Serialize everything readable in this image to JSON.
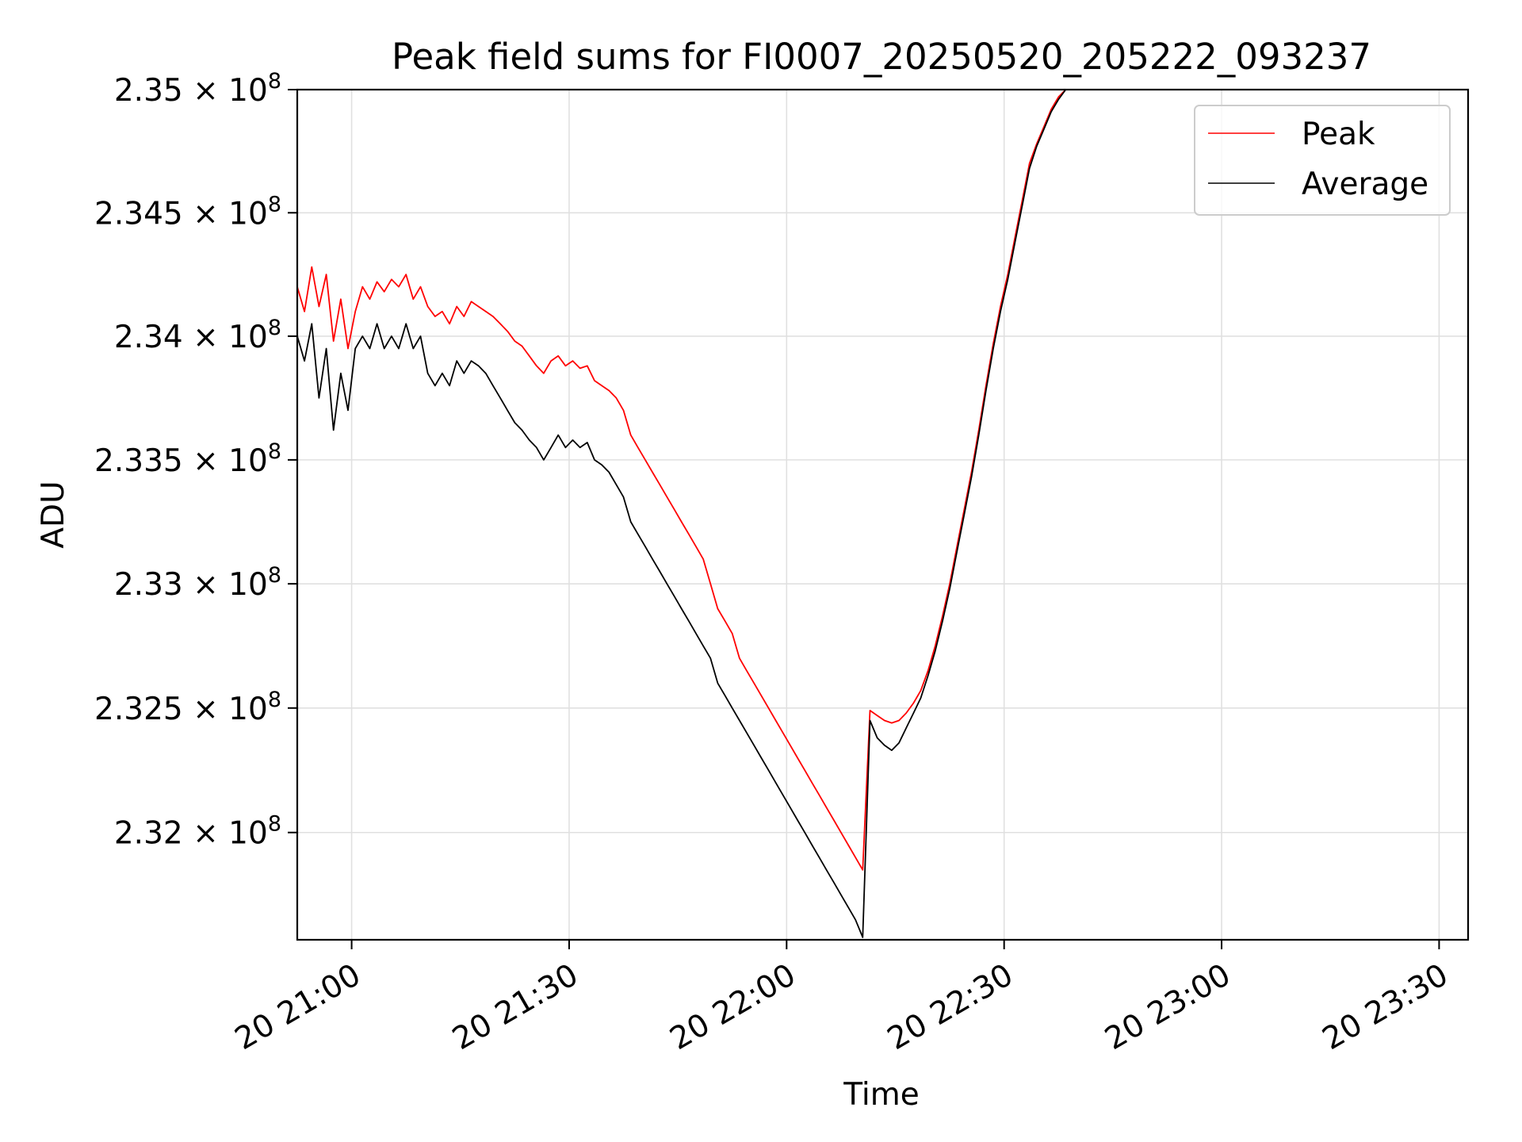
{
  "chart_data": {
    "type": "line",
    "title": "Peak field sums for FI0007_20250520_205222_093237",
    "xlabel": "Time",
    "ylabel": "ADU",
    "x_axis": {
      "kind": "time",
      "range": [
        "2025-05-20T20:52:30",
        "2025-05-20T23:34:00"
      ],
      "ticks": [
        {
          "value": "2025-05-20T21:00:00",
          "label": "20 21:00"
        },
        {
          "value": "2025-05-20T21:30:00",
          "label": "20 21:30"
        },
        {
          "value": "2025-05-20T22:00:00",
          "label": "20 22:00"
        },
        {
          "value": "2025-05-20T22:30:00",
          "label": "20 22:30"
        },
        {
          "value": "2025-05-20T23:00:00",
          "label": "20 23:00"
        },
        {
          "value": "2025-05-20T23:30:00",
          "label": "20 23:30"
        }
      ]
    },
    "y_axis": {
      "scale": "log",
      "range": [
        231570000,
        235000000
      ],
      "ticks": [
        {
          "value": 232000000,
          "mantissa": "2.32",
          "exp": "8"
        },
        {
          "value": 232500000,
          "mantissa": "2.325",
          "exp": "8"
        },
        {
          "value": 233000000,
          "mantissa": "2.33",
          "exp": "8"
        },
        {
          "value": 233500000,
          "mantissa": "2.335",
          "exp": "8"
        },
        {
          "value": 234000000,
          "mantissa": "2.34",
          "exp": "8"
        },
        {
          "value": 234500000,
          "mantissa": "2.345",
          "exp": "8"
        },
        {
          "value": 235000000,
          "mantissa": "2.35",
          "exp": "8"
        }
      ]
    },
    "grid": true,
    "legend": {
      "position": "top-right",
      "entries": [
        "Peak",
        "Average"
      ]
    },
    "series": [
      {
        "name": "Peak",
        "color": "#ff0000",
        "points": [
          [
            "2025-05-20T20:52:30",
            234200000
          ],
          [
            "2025-05-20T20:53:30",
            234100000
          ],
          [
            "2025-05-20T20:54:30",
            234280000
          ],
          [
            "2025-05-20T20:55:30",
            234120000
          ],
          [
            "2025-05-20T20:56:30",
            234250000
          ],
          [
            "2025-05-20T20:57:30",
            233980000
          ],
          [
            "2025-05-20T20:58:30",
            234150000
          ],
          [
            "2025-05-20T20:59:30",
            233950000
          ],
          [
            "2025-05-20T21:00:30",
            234100000
          ],
          [
            "2025-05-20T21:01:30",
            234200000
          ],
          [
            "2025-05-20T21:02:30",
            234150000
          ],
          [
            "2025-05-20T21:03:30",
            234220000
          ],
          [
            "2025-05-20T21:04:30",
            234180000
          ],
          [
            "2025-05-20T21:05:30",
            234230000
          ],
          [
            "2025-05-20T21:06:30",
            234200000
          ],
          [
            "2025-05-20T21:07:30",
            234250000
          ],
          [
            "2025-05-20T21:08:30",
            234150000
          ],
          [
            "2025-05-20T21:09:30",
            234200000
          ],
          [
            "2025-05-20T21:10:30",
            234120000
          ],
          [
            "2025-05-20T21:11:30",
            234080000
          ],
          [
            "2025-05-20T21:12:30",
            234100000
          ],
          [
            "2025-05-20T21:13:30",
            234050000
          ],
          [
            "2025-05-20T21:14:30",
            234120000
          ],
          [
            "2025-05-20T21:15:30",
            234080000
          ],
          [
            "2025-05-20T21:16:30",
            234140000
          ],
          [
            "2025-05-20T21:17:30",
            234120000
          ],
          [
            "2025-05-20T21:18:30",
            234100000
          ],
          [
            "2025-05-20T21:19:30",
            234080000
          ],
          [
            "2025-05-20T21:20:30",
            234050000
          ],
          [
            "2025-05-20T21:21:30",
            234020000
          ],
          [
            "2025-05-20T21:22:30",
            233980000
          ],
          [
            "2025-05-20T21:23:30",
            233960000
          ],
          [
            "2025-05-20T21:24:30",
            233920000
          ],
          [
            "2025-05-20T21:25:30",
            233880000
          ],
          [
            "2025-05-20T21:26:30",
            233850000
          ],
          [
            "2025-05-20T21:27:30",
            233900000
          ],
          [
            "2025-05-20T21:28:30",
            233920000
          ],
          [
            "2025-05-20T21:29:30",
            233880000
          ],
          [
            "2025-05-20T21:30:30",
            233900000
          ],
          [
            "2025-05-20T21:31:30",
            233870000
          ],
          [
            "2025-05-20T21:32:30",
            233880000
          ],
          [
            "2025-05-20T21:33:30",
            233820000
          ],
          [
            "2025-05-20T21:34:30",
            233800000
          ],
          [
            "2025-05-20T21:35:30",
            233780000
          ],
          [
            "2025-05-20T21:36:30",
            233750000
          ],
          [
            "2025-05-20T21:37:30",
            233700000
          ],
          [
            "2025-05-20T21:38:30",
            233600000
          ],
          [
            "2025-05-20T21:39:30",
            233550000
          ],
          [
            "2025-05-20T21:40:30",
            233500000
          ],
          [
            "2025-05-20T21:41:30",
            233450000
          ],
          [
            "2025-05-20T21:42:30",
            233400000
          ],
          [
            "2025-05-20T21:43:30",
            233350000
          ],
          [
            "2025-05-20T21:44:30",
            233300000
          ],
          [
            "2025-05-20T21:45:30",
            233250000
          ],
          [
            "2025-05-20T21:46:30",
            233200000
          ],
          [
            "2025-05-20T21:47:30",
            233150000
          ],
          [
            "2025-05-20T21:48:30",
            233100000
          ],
          [
            "2025-05-20T21:49:30",
            233000000
          ],
          [
            "2025-05-20T21:50:30",
            232900000
          ],
          [
            "2025-05-20T21:51:30",
            232850000
          ],
          [
            "2025-05-20T21:52:30",
            232800000
          ],
          [
            "2025-05-20T21:53:30",
            232700000
          ],
          [
            "2025-05-20T21:54:30",
            232650000
          ],
          [
            "2025-05-20T21:55:30",
            232600000
          ],
          [
            "2025-05-20T21:56:30",
            232550000
          ],
          [
            "2025-05-20T21:57:30",
            232500000
          ],
          [
            "2025-05-20T21:58:30",
            232450000
          ],
          [
            "2025-05-20T21:59:30",
            232400000
          ],
          [
            "2025-05-20T22:00:30",
            232350000
          ],
          [
            "2025-05-20T22:01:30",
            232300000
          ],
          [
            "2025-05-20T22:02:30",
            232250000
          ],
          [
            "2025-05-20T22:03:30",
            232200000
          ],
          [
            "2025-05-20T22:04:30",
            232150000
          ],
          [
            "2025-05-20T22:05:30",
            232100000
          ],
          [
            "2025-05-20T22:06:30",
            232050000
          ],
          [
            "2025-05-20T22:07:30",
            232000000
          ],
          [
            "2025-05-20T22:08:30",
            231950000
          ],
          [
            "2025-05-20T22:09:30",
            231900000
          ],
          [
            "2025-05-20T22:10:30",
            231850000
          ],
          [
            "2025-05-20T22:11:30",
            232490000
          ],
          [
            "2025-05-20T22:12:30",
            232470000
          ],
          [
            "2025-05-20T22:13:30",
            232450000
          ],
          [
            "2025-05-20T22:14:30",
            232440000
          ],
          [
            "2025-05-20T22:15:30",
            232450000
          ],
          [
            "2025-05-20T22:16:30",
            232480000
          ],
          [
            "2025-05-20T22:17:30",
            232520000
          ],
          [
            "2025-05-20T22:18:30",
            232570000
          ],
          [
            "2025-05-20T22:19:30",
            232650000
          ],
          [
            "2025-05-20T22:20:30",
            232750000
          ],
          [
            "2025-05-20T22:21:30",
            232870000
          ],
          [
            "2025-05-20T22:22:30",
            233000000
          ],
          [
            "2025-05-20T22:23:30",
            233150000
          ],
          [
            "2025-05-20T22:24:30",
            233300000
          ],
          [
            "2025-05-20T22:25:30",
            233450000
          ],
          [
            "2025-05-20T22:26:30",
            233620000
          ],
          [
            "2025-05-20T22:27:30",
            233800000
          ],
          [
            "2025-05-20T22:28:30",
            233970000
          ],
          [
            "2025-05-20T22:29:30",
            234120000
          ],
          [
            "2025-05-20T22:30:30",
            234250000
          ],
          [
            "2025-05-20T22:31:30",
            234400000
          ],
          [
            "2025-05-20T22:32:30",
            234550000
          ],
          [
            "2025-05-20T22:33:30",
            234700000
          ],
          [
            "2025-05-20T22:34:30",
            234780000
          ],
          [
            "2025-05-20T22:35:30",
            234850000
          ],
          [
            "2025-05-20T22:36:30",
            234920000
          ],
          [
            "2025-05-20T22:37:30",
            234970000
          ],
          [
            "2025-05-20T22:38:30",
            235000000
          ]
        ]
      },
      {
        "name": "Average",
        "color": "#000000",
        "points": [
          [
            "2025-05-20T20:52:30",
            234000000
          ],
          [
            "2025-05-20T20:53:30",
            233900000
          ],
          [
            "2025-05-20T20:54:30",
            234050000
          ],
          [
            "2025-05-20T20:55:30",
            233750000
          ],
          [
            "2025-05-20T20:56:30",
            233950000
          ],
          [
            "2025-05-20T20:57:30",
            233620000
          ],
          [
            "2025-05-20T20:58:30",
            233850000
          ],
          [
            "2025-05-20T20:59:30",
            233700000
          ],
          [
            "2025-05-20T21:00:30",
            233950000
          ],
          [
            "2025-05-20T21:01:30",
            234000000
          ],
          [
            "2025-05-20T21:02:30",
            233950000
          ],
          [
            "2025-05-20T21:03:30",
            234050000
          ],
          [
            "2025-05-20T21:04:30",
            233950000
          ],
          [
            "2025-05-20T21:05:30",
            234000000
          ],
          [
            "2025-05-20T21:06:30",
            233950000
          ],
          [
            "2025-05-20T21:07:30",
            234050000
          ],
          [
            "2025-05-20T21:08:30",
            233950000
          ],
          [
            "2025-05-20T21:09:30",
            234000000
          ],
          [
            "2025-05-20T21:10:30",
            233850000
          ],
          [
            "2025-05-20T21:11:30",
            233800000
          ],
          [
            "2025-05-20T21:12:30",
            233850000
          ],
          [
            "2025-05-20T21:13:30",
            233800000
          ],
          [
            "2025-05-20T21:14:30",
            233900000
          ],
          [
            "2025-05-20T21:15:30",
            233850000
          ],
          [
            "2025-05-20T21:16:30",
            233900000
          ],
          [
            "2025-05-20T21:17:30",
            233880000
          ],
          [
            "2025-05-20T21:18:30",
            233850000
          ],
          [
            "2025-05-20T21:19:30",
            233800000
          ],
          [
            "2025-05-20T21:20:30",
            233750000
          ],
          [
            "2025-05-20T21:21:30",
            233700000
          ],
          [
            "2025-05-20T21:22:30",
            233650000
          ],
          [
            "2025-05-20T21:23:30",
            233620000
          ],
          [
            "2025-05-20T21:24:30",
            233580000
          ],
          [
            "2025-05-20T21:25:30",
            233550000
          ],
          [
            "2025-05-20T21:26:30",
            233500000
          ],
          [
            "2025-05-20T21:27:30",
            233550000
          ],
          [
            "2025-05-20T21:28:30",
            233600000
          ],
          [
            "2025-05-20T21:29:30",
            233550000
          ],
          [
            "2025-05-20T21:30:30",
            233580000
          ],
          [
            "2025-05-20T21:31:30",
            233550000
          ],
          [
            "2025-05-20T21:32:30",
            233570000
          ],
          [
            "2025-05-20T21:33:30",
            233500000
          ],
          [
            "2025-05-20T21:34:30",
            233480000
          ],
          [
            "2025-05-20T21:35:30",
            233450000
          ],
          [
            "2025-05-20T21:36:30",
            233400000
          ],
          [
            "2025-05-20T21:37:30",
            233350000
          ],
          [
            "2025-05-20T21:38:30",
            233250000
          ],
          [
            "2025-05-20T21:39:30",
            233200000
          ],
          [
            "2025-05-20T21:40:30",
            233150000
          ],
          [
            "2025-05-20T21:41:30",
            233100000
          ],
          [
            "2025-05-20T21:42:30",
            233050000
          ],
          [
            "2025-05-20T21:43:30",
            233000000
          ],
          [
            "2025-05-20T21:44:30",
            232950000
          ],
          [
            "2025-05-20T21:45:30",
            232900000
          ],
          [
            "2025-05-20T21:46:30",
            232850000
          ],
          [
            "2025-05-20T21:47:30",
            232800000
          ],
          [
            "2025-05-20T21:48:30",
            232750000
          ],
          [
            "2025-05-20T21:49:30",
            232700000
          ],
          [
            "2025-05-20T21:50:30",
            232600000
          ],
          [
            "2025-05-20T21:51:30",
            232550000
          ],
          [
            "2025-05-20T21:52:30",
            232500000
          ],
          [
            "2025-05-20T21:53:30",
            232450000
          ],
          [
            "2025-05-20T21:54:30",
            232400000
          ],
          [
            "2025-05-20T21:55:30",
            232350000
          ],
          [
            "2025-05-20T21:56:30",
            232300000
          ],
          [
            "2025-05-20T21:57:30",
            232250000
          ],
          [
            "2025-05-20T21:58:30",
            232200000
          ],
          [
            "2025-05-20T21:59:30",
            232150000
          ],
          [
            "2025-05-20T22:00:30",
            232100000
          ],
          [
            "2025-05-20T22:01:30",
            232050000
          ],
          [
            "2025-05-20T22:02:30",
            232000000
          ],
          [
            "2025-05-20T22:03:30",
            231950000
          ],
          [
            "2025-05-20T22:04:30",
            231900000
          ],
          [
            "2025-05-20T22:05:30",
            231850000
          ],
          [
            "2025-05-20T22:06:30",
            231800000
          ],
          [
            "2025-05-20T22:07:30",
            231750000
          ],
          [
            "2025-05-20T22:08:30",
            231700000
          ],
          [
            "2025-05-20T22:09:30",
            231650000
          ],
          [
            "2025-05-20T22:10:30",
            231580000
          ],
          [
            "2025-05-20T22:11:30",
            232450000
          ],
          [
            "2025-05-20T22:12:30",
            232380000
          ],
          [
            "2025-05-20T22:13:30",
            232350000
          ],
          [
            "2025-05-20T22:14:30",
            232330000
          ],
          [
            "2025-05-20T22:15:30",
            232360000
          ],
          [
            "2025-05-20T22:16:30",
            232420000
          ],
          [
            "2025-05-20T22:17:30",
            232480000
          ],
          [
            "2025-05-20T22:18:30",
            232540000
          ],
          [
            "2025-05-20T22:19:30",
            232630000
          ],
          [
            "2025-05-20T22:20:30",
            232730000
          ],
          [
            "2025-05-20T22:21:30",
            232850000
          ],
          [
            "2025-05-20T22:22:30",
            232980000
          ],
          [
            "2025-05-20T22:23:30",
            233130000
          ],
          [
            "2025-05-20T22:24:30",
            233280000
          ],
          [
            "2025-05-20T22:25:30",
            233430000
          ],
          [
            "2025-05-20T22:26:30",
            233600000
          ],
          [
            "2025-05-20T22:27:30",
            233780000
          ],
          [
            "2025-05-20T22:28:30",
            233950000
          ],
          [
            "2025-05-20T22:29:30",
            234100000
          ],
          [
            "2025-05-20T22:30:30",
            234230000
          ],
          [
            "2025-05-20T22:31:30",
            234380000
          ],
          [
            "2025-05-20T22:32:30",
            234530000
          ],
          [
            "2025-05-20T22:33:30",
            234680000
          ],
          [
            "2025-05-20T22:34:30",
            234770000
          ],
          [
            "2025-05-20T22:35:30",
            234840000
          ],
          [
            "2025-05-20T22:36:30",
            234910000
          ],
          [
            "2025-05-20T22:37:30",
            234960000
          ],
          [
            "2025-05-20T22:38:30",
            235000000
          ]
        ]
      }
    ]
  }
}
